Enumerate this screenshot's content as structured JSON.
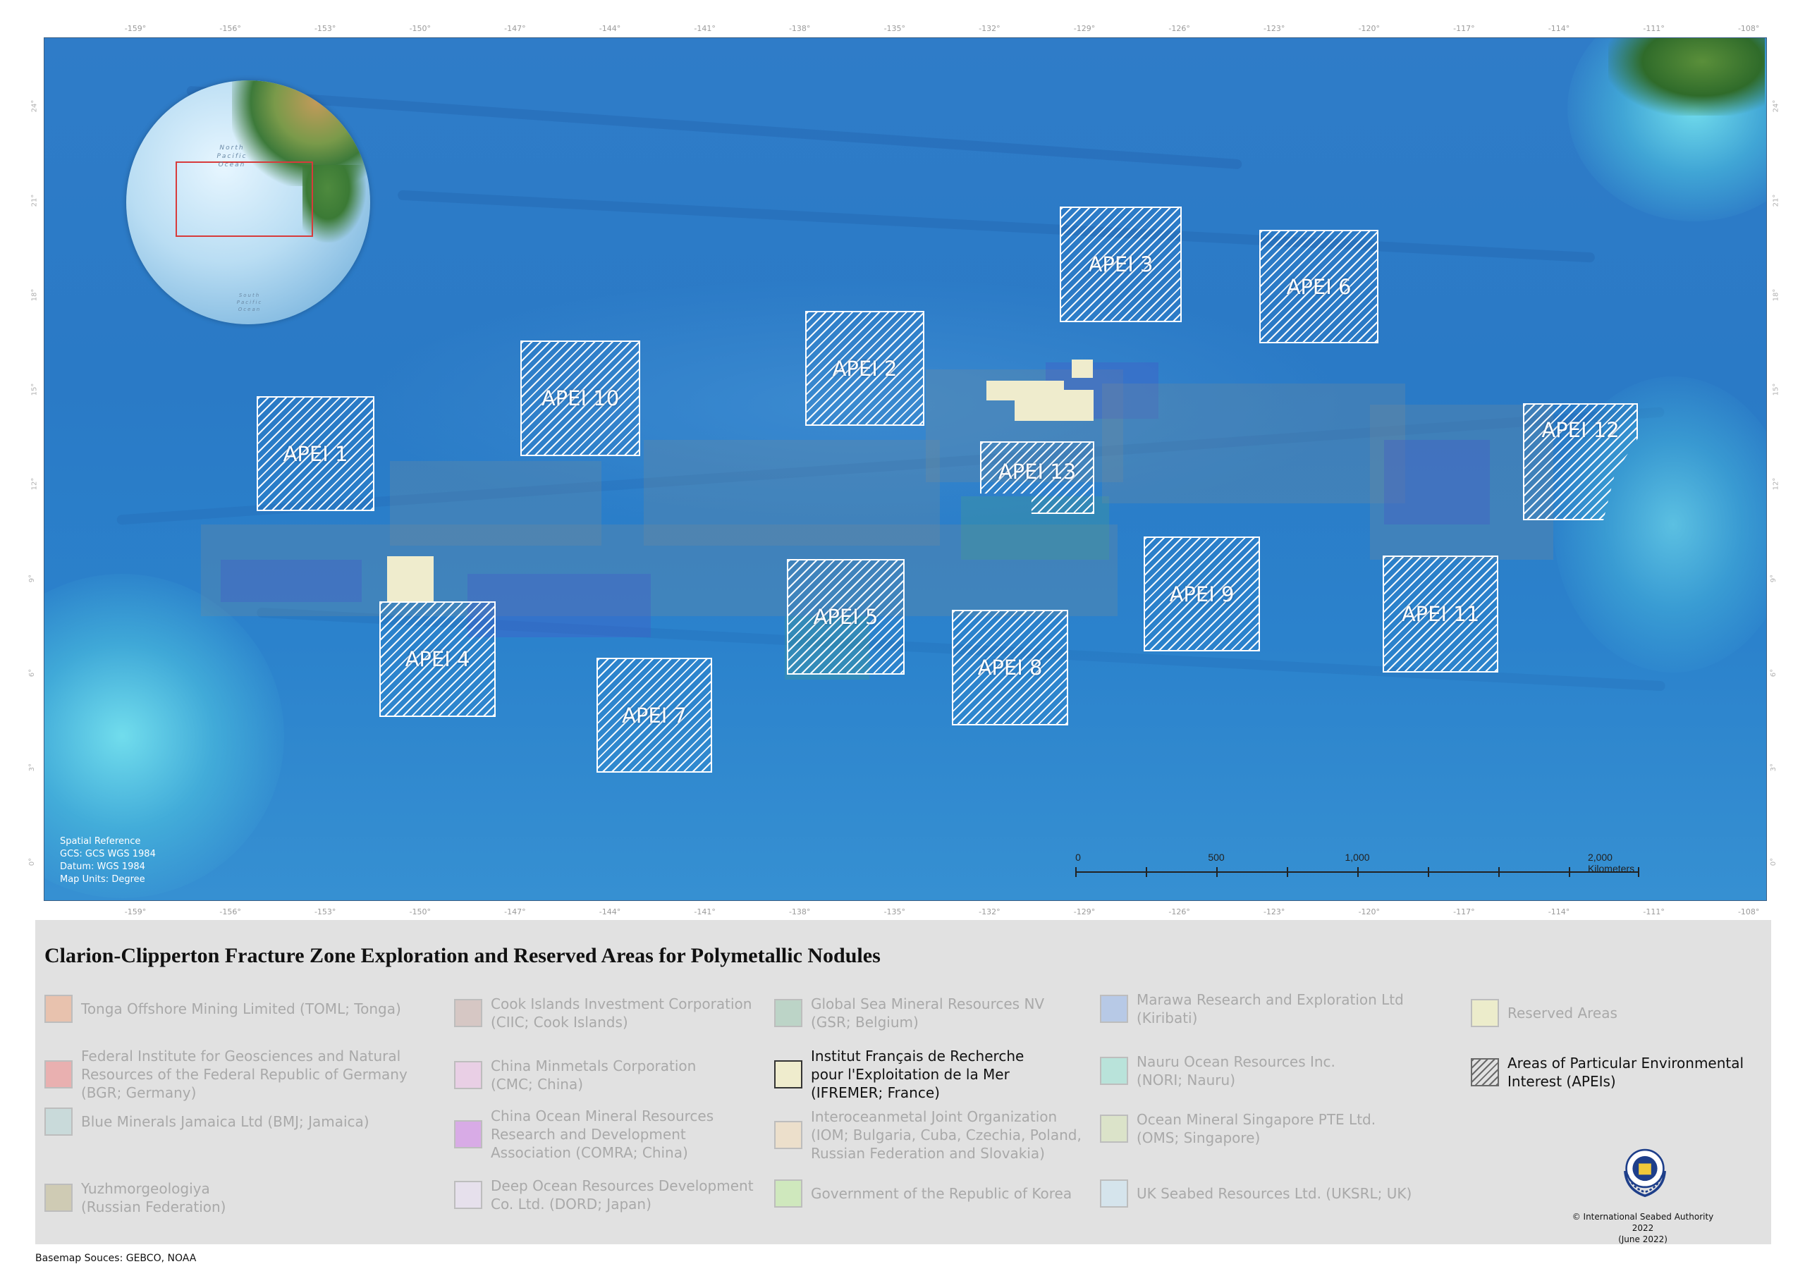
{
  "map": {
    "title": "Clarion-Clipperton Fracture Zone Exploration and Reserved Areas for Polymetallic Nodules",
    "graticule_lon_labels": [
      "-159°",
      "-156°",
      "-153°",
      "-150°",
      "-147°",
      "-144°",
      "-141°",
      "-138°",
      "-135°",
      "-132°",
      "-129°",
      "-126°",
      "-123°",
      "-120°",
      "-117°",
      "-114°",
      "-111°",
      "-108°"
    ],
    "graticule_lat_labels": [
      "24°",
      "21°",
      "18°",
      "15°",
      "12°",
      "9°",
      "6°",
      "3°",
      "0°"
    ],
    "apei_labels": [
      "APEI 1",
      "APEI 2",
      "APEI 3",
      "APEI 4",
      "APEI 5",
      "APEI 6",
      "APEI 7",
      "APEI 8",
      "APEI 9",
      "APEI 10",
      "APEI 11",
      "APEI 12",
      "APEI 13"
    ],
    "globe_labels": {
      "north_pacific": "North Pacific Ocean",
      "south_pacific": "South Pacific Ocean"
    },
    "spatial_reference": {
      "heading": "Spatial Reference",
      "gcs": "GCS: GCS WGS 1984",
      "datum": "Datum: WGS 1984",
      "units": "Map Units: Degree"
    },
    "scalebar": {
      "labels": [
        "0",
        "500",
        "1,000",
        "2,000 Kilometers"
      ]
    }
  },
  "legend": {
    "entries": [
      {
        "label": "Tonga Offshore Mining Limited (TOML; Tonga)",
        "color": "#e8c2ae",
        "active": false
      },
      {
        "label": "Federal Institute for Geosciences and Natural\nResources of the Federal Republic of Germany\n(BGR; Germany)",
        "color": "#e9b0b0",
        "active": false
      },
      {
        "label": "Blue Minerals Jamaica Ltd (BMJ; Jamaica)",
        "color": "#c9dada",
        "active": false
      },
      {
        "label": "Yuzhmorgeologiya\n(Russian Federation)",
        "color": "#cfcbb4",
        "active": false
      },
      {
        "label": "Cook Islands Investment Corporation\n(CIIC; Cook Islands)",
        "color": "#d6c7c4",
        "active": false
      },
      {
        "label": "China Minmetals Corporation\n(CMC; China)",
        "color": "#e9cfe5",
        "active": false
      },
      {
        "label": "China Ocean Mineral Resources\nResearch and Development\nAssociation (COMRA; China)",
        "color": "#d8abe6",
        "active": false
      },
      {
        "label": "Deep Ocean Resources Development\nCo. Ltd. (DORD; Japan)",
        "color": "#e6e0ec",
        "active": false
      },
      {
        "label": "Global Sea Mineral Resources NV\n(GSR; Belgium)",
        "color": "#bcd4c7",
        "active": false
      },
      {
        "label": "Institut Français de Recherche\npour l'Exploitation de la Mer\n(IFREMER; France)",
        "color": "#efeccd",
        "active": true
      },
      {
        "label": "Interoceanmetal Joint Organization\n(IOM; Bulgaria, Cuba, Czechia, Poland,\nRussian Federation and Slovakia)",
        "color": "#ecdfcb",
        "active": false
      },
      {
        "label": "Government of the Republic of Korea",
        "color": "#cfe8bd",
        "active": false
      },
      {
        "label": "Marawa Research and Exploration Ltd\n(Kiribati)",
        "color": "#b7c9e6",
        "active": false
      },
      {
        "label": "Nauru Ocean Resources Inc.\n(NORI; Nauru)",
        "color": "#b9e3da",
        "active": false
      },
      {
        "label": "Ocean Mineral Singapore PTE Ltd.\n(OMS; Singapore)",
        "color": "#dbe3c9",
        "active": false
      },
      {
        "label": "UK Seabed Resources Ltd. (UKSRL; UK)",
        "color": "#d5e4ec",
        "active": false
      },
      {
        "label": "Reserved Areas",
        "color": "#ececcb",
        "active": false
      },
      {
        "label": "Areas of Particular Environmental\nInterest (APEIs)",
        "color": "hatch",
        "active": true
      }
    ]
  },
  "footer": {
    "copyright": "© International Seabed Authority 2022",
    "date": "(June 2022)",
    "sources": "Basemap Souces: GEBCO, NOAA"
  },
  "icons": [
    "isa-logo-icon",
    "globe-icon",
    "hatch-swatch-icon"
  ]
}
